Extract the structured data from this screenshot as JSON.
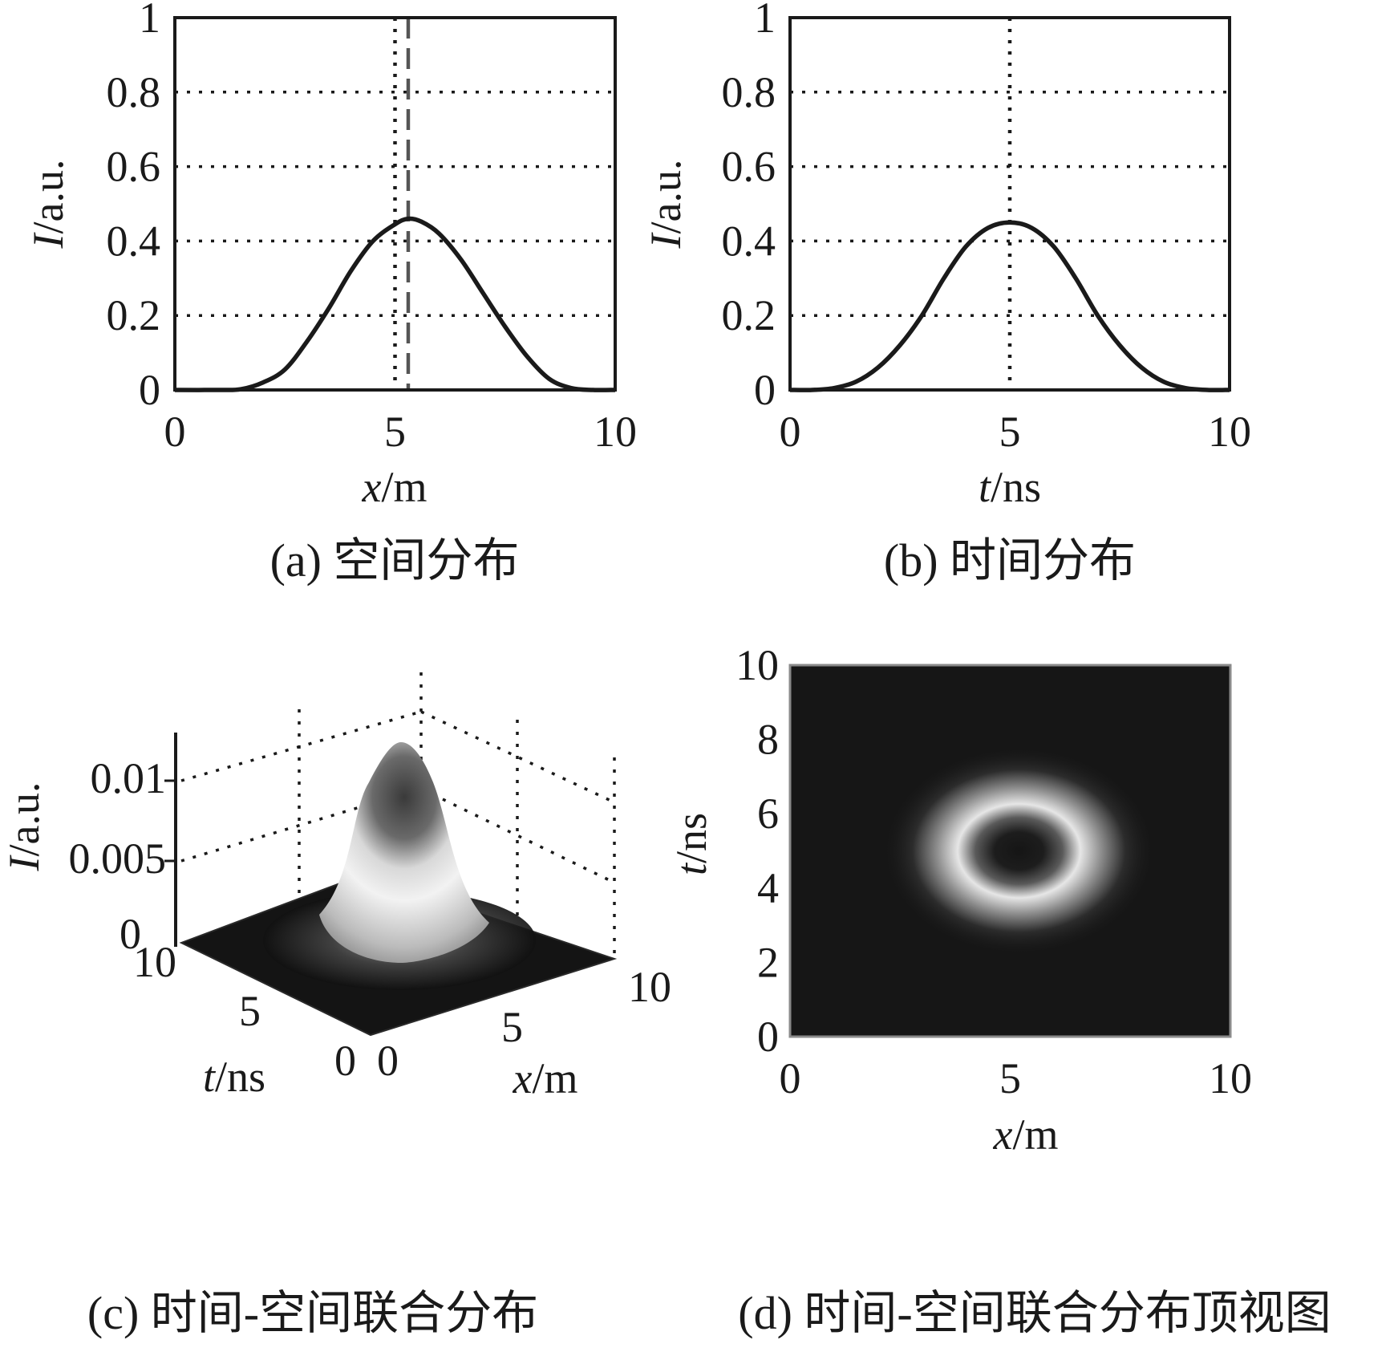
{
  "chart_data": [
    {
      "id": "a",
      "type": "line",
      "caption": "(a) 空间分布",
      "xlabel_var": "x",
      "xlabel_unit": "/m",
      "ylabel_var": "I",
      "ylabel_unit": "/a.u.",
      "xlim": [
        0,
        10
      ],
      "ylim": [
        0,
        1
      ],
      "xticks": [
        0,
        5,
        10
      ],
      "yticks": [
        0,
        0.2,
        0.4,
        0.6,
        0.8,
        1
      ],
      "ytick_labels": [
        "0",
        "0.2",
        "0.4",
        "0.6",
        "0.8",
        "1"
      ],
      "grid": "y-dotted",
      "series": [
        {
          "x": [
            0,
            1.0,
            1.5,
            2.0,
            2.5,
            3.0,
            3.5,
            4.0,
            4.5,
            5.0,
            5.3,
            5.6,
            6.0,
            6.5,
            7.0,
            7.5,
            8.0,
            8.5,
            9.0,
            9.5,
            10
          ],
          "y": [
            0,
            0,
            0.002,
            0.02,
            0.055,
            0.13,
            0.22,
            0.32,
            0.4,
            0.445,
            0.46,
            0.452,
            0.42,
            0.35,
            0.26,
            0.17,
            0.09,
            0.03,
            0.005,
            0,
            0
          ]
        }
      ],
      "vlines": [
        {
          "x": 5.0,
          "style": "dotted"
        },
        {
          "x": 5.3,
          "style": "dashed"
        }
      ]
    },
    {
      "id": "b",
      "type": "line",
      "caption": "(b) 时间分布",
      "xlabel_var": "t",
      "xlabel_unit": "/ns",
      "ylabel_var": "I",
      "ylabel_unit": "/a.u.",
      "xlim": [
        0,
        10
      ],
      "ylim": [
        0,
        1
      ],
      "xticks": [
        0,
        5,
        10
      ],
      "yticks": [
        0,
        0.2,
        0.4,
        0.6,
        0.8,
        1
      ],
      "ytick_labels": [
        "0",
        "0.2",
        "0.4",
        "0.6",
        "0.8",
        "1"
      ],
      "grid": "y-dotted",
      "series": [
        {
          "x": [
            0,
            0.5,
            1.0,
            1.5,
            2.0,
            2.5,
            3.0,
            3.5,
            4.0,
            4.5,
            5.0,
            5.5,
            6.0,
            6.5,
            7.0,
            7.5,
            8.0,
            8.5,
            9.0,
            9.5,
            10
          ],
          "y": [
            0,
            0,
            0.005,
            0.022,
            0.06,
            0.12,
            0.2,
            0.3,
            0.385,
            0.435,
            0.45,
            0.435,
            0.385,
            0.3,
            0.2,
            0.12,
            0.06,
            0.022,
            0.005,
            0,
            0
          ]
        }
      ],
      "vlines": [
        {
          "x": 5.0,
          "style": "dotted"
        }
      ]
    },
    {
      "id": "c",
      "type": "surface",
      "caption": "(c) 时间-空间联合分布",
      "xlabel_var": "x",
      "xlabel_unit": "/m",
      "tlabel_var": "t",
      "tlabel_unit": "/ns",
      "ylabel_var": "I",
      "ylabel_unit": "/a.u.",
      "xticks": [
        0,
        5,
        10
      ],
      "tticks": [
        0,
        5,
        10
      ],
      "zticks": [
        0,
        0.005,
        0.01
      ],
      "ztick_labels": [
        "0",
        "0.005",
        "0.01"
      ],
      "peak_center": {
        "x": 5,
        "t": 5
      },
      "colormap": "gray"
    },
    {
      "id": "d",
      "type": "heatmap",
      "caption": "(d) 时间-空间联合分布顶视图",
      "xlabel_var": "x",
      "xlabel_unit": "/m",
      "ylabel_var": "t",
      "ylabel_unit": "/ns",
      "xlim": [
        0,
        10
      ],
      "ylim": [
        0,
        10
      ],
      "xticks": [
        0,
        5,
        10
      ],
      "yticks": [
        0,
        2,
        4,
        6,
        8,
        10
      ],
      "ring_center": {
        "x": 5.2,
        "t": 5
      },
      "colormap": "gray"
    }
  ]
}
